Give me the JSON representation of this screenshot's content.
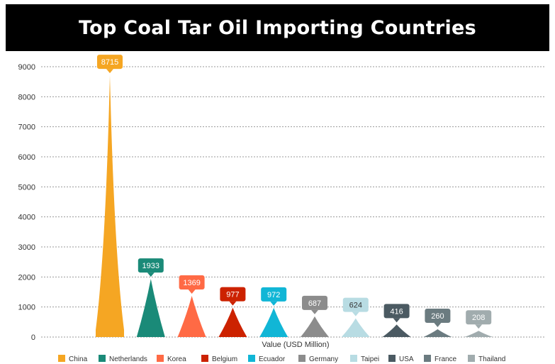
{
  "chart_data": {
    "type": "bar",
    "title": "Top Coal Tar Oil Importing Countries",
    "xlabel": "Value (USD Million)",
    "ylabel": "",
    "ylim": [
      0,
      9000
    ],
    "yticks": [
      0,
      1000,
      2000,
      3000,
      4000,
      5000,
      6000,
      7000,
      8000,
      9000
    ],
    "grid": true,
    "legend_position": "bottom",
    "categories": [
      "China",
      "Netherlands",
      "Korea",
      "Belgium",
      "Ecuador",
      "Germany",
      "Taipei",
      "USA",
      "France",
      "Thailand"
    ],
    "values": [
      8715,
      1933,
      1369,
      977,
      972,
      687,
      624,
      416,
      260,
      208
    ],
    "colors": [
      "#F5A623",
      "#1A8A78",
      "#FF6A45",
      "#CC2200",
      "#11B6D6",
      "#8C8C8C",
      "#B8DCE3",
      "#4B5A62",
      "#6B7B80",
      "#A1ACAE"
    ],
    "label_text_colors": [
      "#ffffff",
      "#ffffff",
      "#ffffff",
      "#ffffff",
      "#ffffff",
      "#ffffff",
      "#333333",
      "#ffffff",
      "#ffffff",
      "#ffffff"
    ]
  }
}
